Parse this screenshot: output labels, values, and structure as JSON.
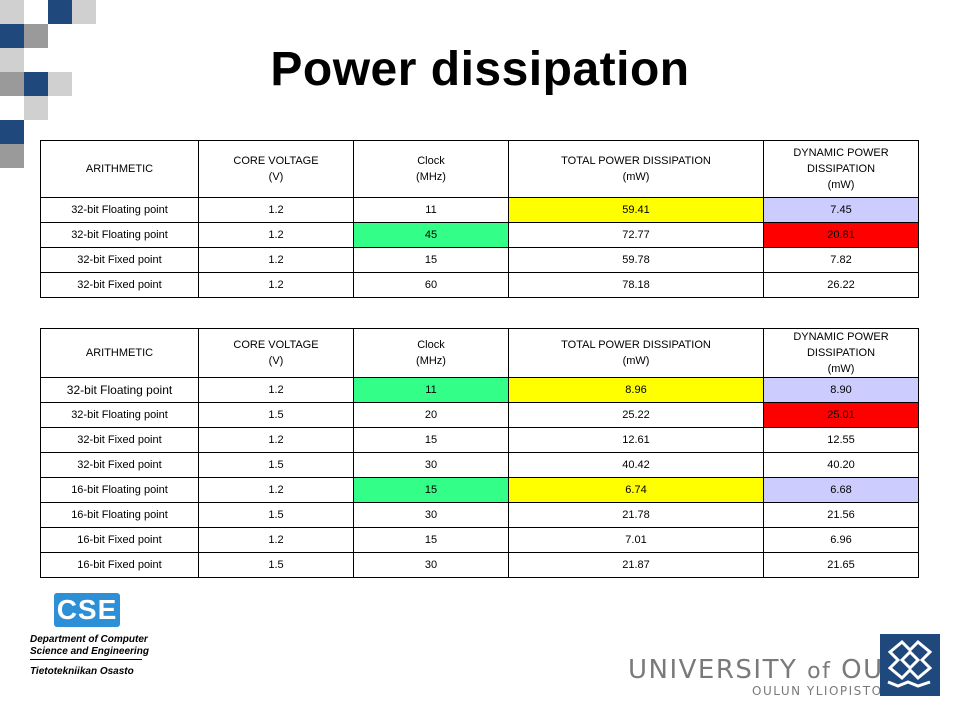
{
  "slide": {
    "title": "Power dissipation"
  },
  "headers": {
    "arithmetic": "ARITHMETIC",
    "core_voltage": [
      "CORE VOLTAGE",
      "(V)"
    ],
    "clock": [
      "Clock",
      "(MHz)"
    ],
    "total_power": [
      "TOTAL POWER DISSIPATION",
      "(mW)"
    ],
    "dynamic_power": [
      "DYNAMIC POWER DISSIPATION",
      "(mW)"
    ]
  },
  "table1": {
    "rows": [
      {
        "arithmetic": "32-bit Floating point",
        "voltage": "1.2",
        "clock": "11",
        "total": "59.41",
        "dynamic": "7.45"
      },
      {
        "arithmetic": "32-bit Floating point",
        "voltage": "1.2",
        "clock": "45",
        "total": "72.77",
        "dynamic": "20.81"
      },
      {
        "arithmetic": "32-bit Fixed point",
        "voltage": "1.2",
        "clock": "15",
        "total": "59.78",
        "dynamic": "7.82"
      },
      {
        "arithmetic": "32-bit Fixed point",
        "voltage": "1.2",
        "clock": "60",
        "total": "78.18",
        "dynamic": "26.22"
      }
    ]
  },
  "table2": {
    "rows": [
      {
        "arithmetic": "32-bit Floating point",
        "voltage": "1.2",
        "clock": "11",
        "total": "8.96",
        "dynamic": "8.90"
      },
      {
        "arithmetic": "32-bit Floating point",
        "voltage": "1.5",
        "clock": "20",
        "total": "25.22",
        "dynamic": "25.01"
      },
      {
        "arithmetic": "32-bit Fixed point",
        "voltage": "1.2",
        "clock": "15",
        "total": "12.61",
        "dynamic": "12.55"
      },
      {
        "arithmetic": "32-bit Fixed point",
        "voltage": "1.5",
        "clock": "30",
        "total": "40.42",
        "dynamic": "40.20"
      },
      {
        "arithmetic": "16-bit Floating point",
        "voltage": "1.2",
        "clock": "15",
        "total": "6.74",
        "dynamic": "6.68"
      },
      {
        "arithmetic": "16-bit Floating point",
        "voltage": "1.5",
        "clock": "30",
        "total": "21.78",
        "dynamic": "21.56"
      },
      {
        "arithmetic": "16-bit Fixed point",
        "voltage": "1.2",
        "clock": "15",
        "total": "7.01",
        "dynamic": "6.96"
      },
      {
        "arithmetic": "16-bit Fixed point",
        "voltage": "1.5",
        "clock": "30",
        "total": "21.87",
        "dynamic": "21.65"
      }
    ]
  },
  "highlight_colors": {
    "yellow": "#ffff00",
    "green": "#33ff88",
    "red": "#ff0000",
    "lavender": "#ccccff"
  },
  "branding": {
    "cse_logo_text": "CSE",
    "department_line1": "Department of Computer",
    "department_line2": "Science and Engineering",
    "department_finnish": "Tietotekniikan Osasto",
    "university_name_1": "UNIVERSITY ",
    "university_name_of": "of",
    "university_name_2": " OULU",
    "university_finnish": "OULUN YLIOPISTO",
    "accent_blue": "#2d8fd5",
    "navy": "#1f497d"
  }
}
